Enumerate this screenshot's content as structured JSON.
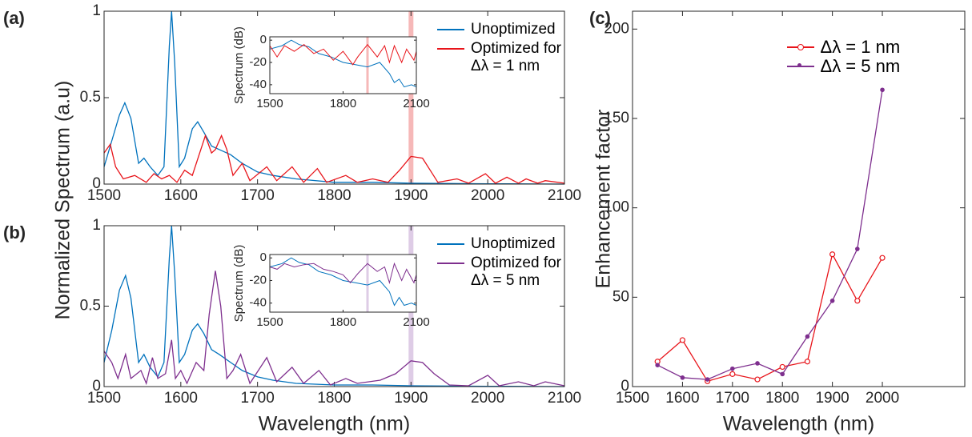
{
  "chart_data": [
    {
      "type": "line",
      "label": "(a)",
      "ylabel": "Normalized Spectrum (a.u)",
      "xlim": [
        1500,
        2100
      ],
      "ylim": [
        0,
        1
      ],
      "xticks": [
        1500,
        1600,
        1700,
        1800,
        1900,
        2000,
        2100
      ],
      "yticks": [
        0,
        0.5,
        1
      ],
      "highlight": 1900,
      "highlight_color": "#f4a6a6",
      "legend": "northeast",
      "series": [
        {
          "name": "Unoptimized",
          "color": "#0072bd",
          "x": [
            1500,
            1510,
            1520,
            1527,
            1535,
            1545,
            1552,
            1560,
            1570,
            1578,
            1585,
            1588,
            1592,
            1598,
            1605,
            1615,
            1622,
            1630,
            1640,
            1650,
            1665,
            1680,
            1700,
            1720,
            1750,
            1800,
            1850,
            1900,
            2000,
            2100
          ],
          "values": [
            0.1,
            0.25,
            0.4,
            0.47,
            0.38,
            0.12,
            0.15,
            0.1,
            0.05,
            0.1,
            0.8,
            1.0,
            0.7,
            0.1,
            0.15,
            0.32,
            0.36,
            0.3,
            0.22,
            0.2,
            0.17,
            0.12,
            0.07,
            0.05,
            0.03,
            0.01,
            0.01,
            0.005,
            0.002,
            0
          ]
        },
        {
          "name": "Optimized for\nΔλ = 1 nm",
          "color": "#e8151b",
          "x": [
            1500,
            1508,
            1515,
            1525,
            1540,
            1555,
            1565,
            1575,
            1585,
            1595,
            1605,
            1615,
            1632,
            1640,
            1645,
            1653,
            1660,
            1668,
            1680,
            1690,
            1712,
            1725,
            1745,
            1760,
            1778,
            1790,
            1815,
            1830,
            1850,
            1870,
            1885,
            1900,
            1915,
            1925,
            1935,
            1960,
            1975,
            1997,
            2010,
            2025,
            2040,
            2050,
            2065,
            2075,
            2100
          ],
          "values": [
            0.18,
            0.23,
            0.1,
            0.03,
            0.05,
            0.01,
            0.06,
            0.03,
            0.05,
            0.01,
            0.08,
            0.05,
            0.28,
            0.18,
            0.2,
            0.28,
            0.2,
            0.05,
            0.12,
            0.02,
            0.1,
            0.02,
            0.1,
            0.01,
            0.09,
            0.01,
            0.05,
            0.01,
            0.03,
            0.01,
            0.08,
            0.16,
            0.15,
            0.08,
            0.01,
            0.03,
            0.005,
            0.06,
            0.005,
            0.04,
            0.005,
            0.03,
            0.005,
            0.02,
            0.005
          ]
        }
      ],
      "inset": {
        "type": "line",
        "ylabel": "Spectrum (dB)",
        "xlim": [
          1500,
          2100
        ],
        "ylim": [
          -48,
          3
        ],
        "xticks": [
          1500,
          1800,
          2100
        ],
        "yticks": [
          -40,
          -20,
          0
        ],
        "highlight": 1900,
        "highlight_color": "#f4a6a6",
        "series": [
          {
            "color": "#0072bd",
            "x": [
              1500,
              1550,
              1588,
              1620,
              1660,
              1700,
              1750,
              1800,
              1850,
              1900,
              1950,
              1990,
              2010,
              2030,
              2050,
              2080,
              2100
            ],
            "values": [
              -8,
              -5,
              0,
              -4,
              -6,
              -12,
              -15,
              -20,
              -22,
              -24,
              -20,
              -30,
              -38,
              -35,
              -42,
              -40,
              -42
            ]
          },
          {
            "color": "#e8151b",
            "x": [
              1500,
              1530,
              1560,
              1600,
              1640,
              1680,
              1720,
              1760,
              1800,
              1840,
              1860,
              1900,
              1940,
              1970,
              1990,
              2010,
              2040,
              2060,
              2090,
              2100
            ],
            "values": [
              -5,
              -15,
              -5,
              -10,
              -4,
              -12,
              -8,
              -18,
              -10,
              -22,
              -15,
              -4,
              -15,
              -5,
              -20,
              -5,
              -20,
              -8,
              -18,
              -10
            ]
          }
        ]
      }
    },
    {
      "type": "line",
      "label": "(b)",
      "xlabel": "Wavelength (nm)",
      "xlim": [
        1500,
        2100
      ],
      "ylim": [
        0,
        1
      ],
      "xticks": [
        1500,
        1600,
        1700,
        1800,
        1900,
        2000,
        2100
      ],
      "yticks": [
        0,
        0.5,
        1
      ],
      "highlight": 1900,
      "highlight_color": "#d6bfe0",
      "legend": "northeast",
      "series": [
        {
          "name": "Unoptimized",
          "color": "#0072bd",
          "x": [
            1500,
            1510,
            1520,
            1528,
            1535,
            1545,
            1552,
            1560,
            1570,
            1578,
            1585,
            1588,
            1592,
            1598,
            1605,
            1615,
            1622,
            1630,
            1640,
            1650,
            1665,
            1680,
            1700,
            1720,
            1750,
            1800,
            1850,
            1900,
            2000,
            2100
          ],
          "values": [
            0.15,
            0.35,
            0.6,
            0.69,
            0.55,
            0.15,
            0.2,
            0.12,
            0.06,
            0.15,
            0.8,
            1.0,
            0.7,
            0.15,
            0.2,
            0.35,
            0.39,
            0.33,
            0.23,
            0.2,
            0.15,
            0.1,
            0.06,
            0.04,
            0.02,
            0.01,
            0.01,
            0.005,
            0.002,
            0
          ]
        },
        {
          "name": "Optimized for\nΔλ = 5 nm",
          "color": "#7e2f8e",
          "x": [
            1500,
            1510,
            1518,
            1528,
            1535,
            1548,
            1555,
            1563,
            1570,
            1580,
            1588,
            1593,
            1600,
            1608,
            1620,
            1630,
            1637,
            1645,
            1652,
            1660,
            1668,
            1678,
            1690,
            1712,
            1725,
            1745,
            1760,
            1780,
            1795,
            1815,
            1830,
            1860,
            1880,
            1900,
            1915,
            1930,
            1950,
            1975,
            2000,
            2015,
            2040,
            2060,
            2075,
            2100
          ],
          "values": [
            0.22,
            0.15,
            0.05,
            0.2,
            0.05,
            0.1,
            0.02,
            0.18,
            0.05,
            0.08,
            0.29,
            0.05,
            0.1,
            0.02,
            0.15,
            0.1,
            0.45,
            0.72,
            0.5,
            0.05,
            0.1,
            0.2,
            0.02,
            0.18,
            0.03,
            0.12,
            0.02,
            0.1,
            0.01,
            0.05,
            0.02,
            0.04,
            0.08,
            0.16,
            0.15,
            0.08,
            0.01,
            0.005,
            0.07,
            0.005,
            0.03,
            0.005,
            0.03,
            0.005
          ]
        }
      ],
      "inset": {
        "type": "line",
        "ylabel": "Spectrum (dB)",
        "xlim": [
          1500,
          2100
        ],
        "ylim": [
          -48,
          3
        ],
        "xticks": [
          1500,
          1800,
          2100
        ],
        "yticks": [
          -40,
          -20,
          0
        ],
        "highlight": 1900,
        "highlight_color": "#d6bfe0",
        "series": [
          {
            "color": "#0072bd",
            "x": [
              1500,
              1550,
              1588,
              1620,
              1660,
              1700,
              1750,
              1800,
              1850,
              1900,
              1950,
              1990,
              2010,
              2030,
              2050,
              2080,
              2100
            ],
            "values": [
              -8,
              -5,
              0,
              -4,
              -6,
              -12,
              -15,
              -20,
              -22,
              -24,
              -20,
              -30,
              -42,
              -35,
              -42,
              -40,
              -42
            ]
          },
          {
            "color": "#7e2f8e",
            "x": [
              1500,
              1530,
              1560,
              1600,
              1640,
              1680,
              1720,
              1760,
              1800,
              1830,
              1860,
              1900,
              1940,
              1970,
              1990,
              2010,
              2040,
              2060,
              2090,
              2100
            ],
            "values": [
              -8,
              -10,
              -5,
              -8,
              -6,
              -5,
              -10,
              -12,
              -15,
              -22,
              -14,
              -5,
              -12,
              -8,
              -22,
              -5,
              -20,
              -10,
              -22,
              -15
            ]
          }
        ]
      }
    },
    {
      "type": "line",
      "label": "(c)",
      "xlabel": "Wavelength (nm)",
      "ylabel": "Enhancement factor",
      "xlim": [
        1500,
        2165
      ],
      "ylim": [
        0,
        210
      ],
      "xticks": [
        1500,
        1600,
        1700,
        1800,
        1900,
        2000
      ],
      "yticks": [
        0,
        50,
        100,
        150,
        200
      ],
      "legend": "north",
      "series": [
        {
          "name": "Δλ = 1 nm",
          "color": "#e8151b",
          "marker": "open-circle",
          "x": [
            1550,
            1600,
            1650,
            1700,
            1750,
            1800,
            1850,
            1900,
            1950,
            2000
          ],
          "values": [
            14,
            26,
            3,
            7,
            4,
            11,
            14,
            74,
            48,
            72
          ]
        },
        {
          "name": "Δλ = 5 nm",
          "color": "#7e2f8e",
          "marker": "dot",
          "x": [
            1550,
            1600,
            1650,
            1700,
            1750,
            1800,
            1850,
            1900,
            1950,
            2000
          ],
          "values": [
            12,
            5,
            4,
            10,
            13,
            7,
            28,
            48,
            77,
            166
          ]
        }
      ]
    }
  ]
}
